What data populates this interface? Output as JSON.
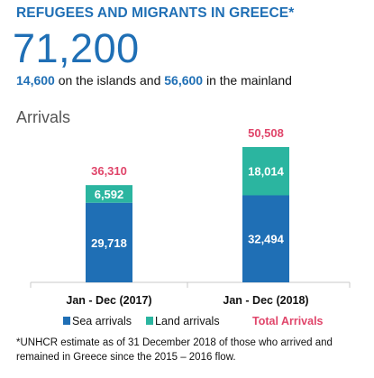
{
  "header": {
    "headline": "REFUGEES AND MIGRANTS IN GREECE*",
    "total": "71,200",
    "islands_value": "14,600",
    "islands_text": "on the islands and",
    "mainland_value": "56,600",
    "mainland_text": "in the mainland"
  },
  "section_label": "Arrivals",
  "colors": {
    "sea": "#1f6fb5",
    "land": "#2bb5a0",
    "total": "#e0456a",
    "axis": "#c8c8c8",
    "headline": "#1f6fb5"
  },
  "chart_data": {
    "type": "bar",
    "stacked": true,
    "categories": [
      "Jan - Dec (2017)",
      "Jan - Dec (2018)"
    ],
    "series": [
      {
        "name": "Sea arrivals",
        "values": [
          29718,
          32494
        ],
        "labels": [
          "29,718",
          "32,494"
        ]
      },
      {
        "name": "Land arrivals",
        "values": [
          6592,
          18014
        ],
        "labels": [
          "6,592",
          "18,014"
        ]
      }
    ],
    "totals": {
      "name": "Total Arrivals",
      "values": [
        36310,
        50508
      ],
      "labels": [
        "36,310",
        "50,508"
      ]
    },
    "legend": [
      "Sea arrivals",
      "Land arrivals",
      "Total Arrivals"
    ],
    "legend_placement": "bottom",
    "grid": false
  },
  "footnote": "*UNHCR estimate as of 31 December 2018 of those who arrived and remained in Greece since the 2015 – 2016 flow."
}
